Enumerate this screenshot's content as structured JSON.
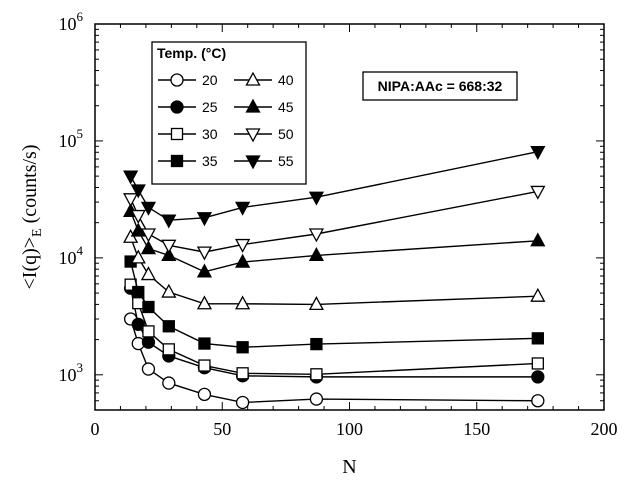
{
  "chart_data": {
    "type": "line",
    "xlabel": "N",
    "ylabel_main": "<I(q)>",
    "ylabel_sub": "E",
    "ylabel_unit": " (counts/s)",
    "xlim": [
      0,
      200
    ],
    "ylim": [
      500,
      1000000
    ],
    "y_scale": "log",
    "x_ticks": [
      0,
      50,
      100,
      150,
      200
    ],
    "x_tick_labels": [
      "0",
      "50",
      "100",
      "150",
      "200"
    ],
    "y_tick_exponents": [
      3,
      4,
      5,
      6
    ],
    "y_tick_base": "10",
    "legend": {
      "title": "Temp. (°C)",
      "placement": "top-left"
    },
    "annotation": "NIPA:AAc = 668:32",
    "x": [
      14,
      17,
      21,
      29,
      43,
      58,
      87,
      174
    ],
    "series": [
      {
        "name": "20",
        "marker": "circle",
        "filled": false,
        "values": [
          3000,
          1850,
          1120,
          850,
          680,
          580,
          620,
          600
        ]
      },
      {
        "name": "25",
        "marker": "circle",
        "filled": true,
        "values": [
          5500,
          2700,
          1900,
          1450,
          1150,
          980,
          960,
          960
        ]
      },
      {
        "name": "30",
        "marker": "square",
        "filled": false,
        "values": [
          5900,
          4100,
          2350,
          1650,
          1200,
          1030,
          1010,
          1250
        ]
      },
      {
        "name": "35",
        "marker": "square",
        "filled": true,
        "values": [
          9300,
          5100,
          3800,
          2600,
          1850,
          1720,
          1830,
          2050
        ]
      },
      {
        "name": "40",
        "marker": "triangle-up",
        "filled": false,
        "values": [
          15000,
          10000,
          7200,
          5100,
          4050,
          4050,
          4000,
          4700
        ]
      },
      {
        "name": "45",
        "marker": "triangle-up",
        "filled": true,
        "values": [
          25000,
          17000,
          12000,
          10500,
          7600,
          9200,
          10500,
          14000
        ]
      },
      {
        "name": "50",
        "marker": "triangle-down",
        "filled": false,
        "values": [
          32000,
          23000,
          16000,
          12800,
          11200,
          13000,
          16000,
          37000
        ]
      },
      {
        "name": "55",
        "marker": "triangle-down",
        "filled": true,
        "values": [
          50000,
          38000,
          27000,
          21000,
          22000,
          27000,
          33000,
          81000
        ]
      }
    ]
  }
}
